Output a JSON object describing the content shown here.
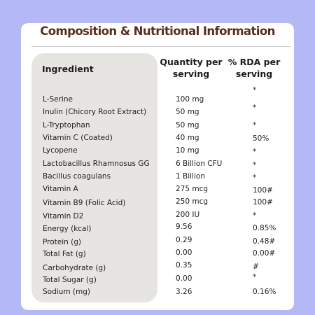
{
  "title": "Composition & Nutritional Information",
  "columns": {
    "ingredient": "Ingredient",
    "quantity": "Quantity per serving",
    "rda": "% RDA per serving"
  },
  "rows": [
    {
      "ingredient": "L-Serine",
      "quantity": "100 mg",
      "rda": "*"
    },
    {
      "ingredient": "Inulin (Chicory Root Extract)",
      "quantity": "50 mg",
      "rda": "*"
    },
    {
      "ingredient": "L-Tryptophan",
      "quantity": "50 mg",
      "rda": "*"
    },
    {
      "ingredient": "Vitamin C (Coated)",
      "quantity": "40 mg",
      "rda": "50%"
    },
    {
      "ingredient": "Lycopene",
      "quantity": "10 mg",
      "rda": "*"
    },
    {
      "ingredient": "Lactobacillus Rhamnosus GG",
      "quantity": "6 Billion CFU",
      "rda": "*"
    },
    {
      "ingredient": "Bacillus coagulans",
      "quantity": "1 Billion",
      "rda": "*"
    },
    {
      "ingredient": "Vitamin A",
      "quantity": "275 mcg",
      "rda": "100#"
    },
    {
      "ingredient": "Vitamin B9 (Folic Acid)",
      "quantity": "250 mcg",
      "rda": "100#"
    },
    {
      "ingredient": "Vitamin D2",
      "quantity": "200 IU",
      "rda": "*"
    },
    {
      "ingredient": "Energy (kcal)",
      "quantity": "9.56",
      "rda": "0.85%"
    },
    {
      "ingredient": "Protein (g)",
      "quantity": "0.29",
      "rda": "0.48#"
    },
    {
      "ingredient": "Total Fat (g)",
      "quantity": "0.00",
      "rda": "0.00#"
    },
    {
      "ingredient": "Carbohydrate (g)",
      "quantity": "0.35",
      "rda": "#"
    },
    {
      "ingredient": "Total Sugar (g)",
      "quantity": "0.00",
      "rda": "*"
    },
    {
      "ingredient": "Sodium (mg)",
      "quantity": "3.26",
      "rda": "0.16%"
    }
  ]
}
